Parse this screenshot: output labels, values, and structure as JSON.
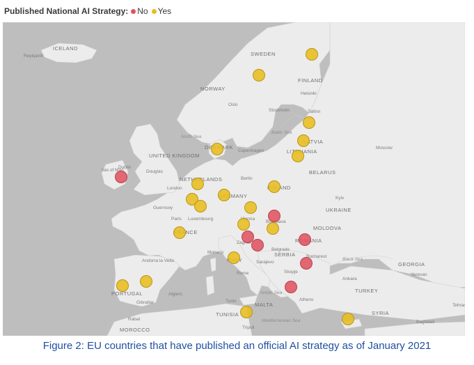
{
  "legend": {
    "title": "Published National AI Strategy:",
    "items": [
      {
        "label": "No",
        "color": "#e05462"
      },
      {
        "label": "Yes",
        "color": "#e8bd1f"
      }
    ]
  },
  "map": {
    "water_color": "#bebebe",
    "land_color": "#ececec",
    "labels": [
      {
        "key": "iceland",
        "text": "ICELAND",
        "kind": "country"
      },
      {
        "key": "reykjavik",
        "text": "Reykjavík",
        "kind": "city"
      },
      {
        "key": "sweden",
        "text": "SWEDEN",
        "kind": "country"
      },
      {
        "key": "norway",
        "text": "NORWAY",
        "kind": "country"
      },
      {
        "key": "finland",
        "text": "FINLAND",
        "kind": "country"
      },
      {
        "key": "helsinki",
        "text": "Helsinki",
        "kind": "city"
      },
      {
        "key": "tallinn",
        "text": "Tallinn",
        "kind": "city"
      },
      {
        "key": "oslo",
        "text": "Oslo",
        "kind": "city"
      },
      {
        "key": "stockholm",
        "text": "Stockholm",
        "kind": "city"
      },
      {
        "key": "north_sea",
        "text": "North Sea",
        "kind": "water"
      },
      {
        "key": "baltic_sea",
        "text": "Baltic Sea",
        "kind": "water"
      },
      {
        "key": "copenhagen",
        "text": "Copenhagen",
        "kind": "city"
      },
      {
        "key": "denmark",
        "text": "DENMARK",
        "kind": "country"
      },
      {
        "key": "latvia",
        "text": "LATVIA",
        "kind": "country"
      },
      {
        "key": "lithuania",
        "text": "LITHUANIA",
        "kind": "country"
      },
      {
        "key": "moscow",
        "text": "Moscow",
        "kind": "city"
      },
      {
        "key": "belarus",
        "text": "BELARUS",
        "kind": "country"
      },
      {
        "key": "united_kingdom",
        "text": "UNITED KINGDOM",
        "kind": "country"
      },
      {
        "key": "isle_of_man",
        "text": "Isle of Man",
        "kind": "city"
      },
      {
        "key": "dublin",
        "text": "Dublin",
        "kind": "city"
      },
      {
        "key": "douglas",
        "text": "Douglas",
        "kind": "city"
      },
      {
        "key": "netherlands",
        "text": "NETHERLANDS",
        "kind": "country"
      },
      {
        "key": "london",
        "text": "London",
        "kind": "city"
      },
      {
        "key": "berlin",
        "text": "Berlin",
        "kind": "city"
      },
      {
        "key": "poland",
        "text": "POLAND",
        "kind": "country"
      },
      {
        "key": "germany",
        "text": "GERMANY",
        "kind": "country"
      },
      {
        "key": "kyiv",
        "text": "Kyiv",
        "kind": "city"
      },
      {
        "key": "ukraine",
        "text": "UKRAINE",
        "kind": "country"
      },
      {
        "key": "paris",
        "text": "Paris",
        "kind": "city"
      },
      {
        "key": "luxembourg",
        "text": "Luxembourg",
        "kind": "city"
      },
      {
        "key": "guernsey",
        "text": "Guernsey",
        "kind": "city"
      },
      {
        "key": "france",
        "text": "FRANCE",
        "kind": "country"
      },
      {
        "key": "vienna",
        "text": "Vienna",
        "kind": "city"
      },
      {
        "key": "bratislava",
        "text": "Bratislava",
        "kind": "city"
      },
      {
        "key": "moldova",
        "text": "MOLDOVA",
        "kind": "country"
      },
      {
        "key": "romania",
        "text": "ROMANIA",
        "kind": "country"
      },
      {
        "key": "zagreb",
        "text": "Zagreb",
        "kind": "city"
      },
      {
        "key": "belgrade",
        "text": "Belgrade",
        "kind": "city"
      },
      {
        "key": "serbia",
        "text": "SERBIA",
        "kind": "country"
      },
      {
        "key": "bucharest",
        "text": "Bucharest",
        "kind": "city"
      },
      {
        "key": "black_sea",
        "text": "Black Sea",
        "kind": "water"
      },
      {
        "key": "monaco",
        "text": "Monaco",
        "kind": "city"
      },
      {
        "key": "sarajevo",
        "text": "Sarajevo",
        "kind": "city"
      },
      {
        "key": "andorra",
        "text": "Andorra la Vella",
        "kind": "city"
      },
      {
        "key": "italy",
        "text": "ITALY",
        "kind": "country"
      },
      {
        "key": "rome",
        "text": "Rome",
        "kind": "city"
      },
      {
        "key": "skopje",
        "text": "Skopje",
        "kind": "city"
      },
      {
        "key": "georgia",
        "text": "GEORGIA",
        "kind": "country"
      },
      {
        "key": "yerevan",
        "text": "Yerevan",
        "kind": "city"
      },
      {
        "key": "ankara",
        "text": "Ankara",
        "kind": "city"
      },
      {
        "key": "turkey",
        "text": "TURKEY",
        "kind": "country"
      },
      {
        "key": "portugal",
        "text": "PORTUGAL",
        "kind": "country"
      },
      {
        "key": "gibraltar",
        "text": "Gibraltar",
        "kind": "city"
      },
      {
        "key": "algiers",
        "text": "Algiers",
        "kind": "city"
      },
      {
        "key": "tunis",
        "text": "Tunis",
        "kind": "city"
      },
      {
        "key": "ionian_sea",
        "text": "Ionian Sea",
        "kind": "water"
      },
      {
        "key": "athens",
        "text": "Athens",
        "kind": "city"
      },
      {
        "key": "tunisia",
        "text": "TUNISIA",
        "kind": "country"
      },
      {
        "key": "malta",
        "text": "MALTA",
        "kind": "country"
      },
      {
        "key": "mediterranean",
        "text": "Mediterranean Sea",
        "kind": "water"
      },
      {
        "key": "syria",
        "text": "SYRIA",
        "kind": "country"
      },
      {
        "key": "baghdad",
        "text": "Baghdad",
        "kind": "city"
      },
      {
        "key": "tehran",
        "text": "Tehran",
        "kind": "city"
      },
      {
        "key": "rabat",
        "text": "Rabat",
        "kind": "city"
      },
      {
        "key": "tripoli",
        "text": "Tripoli",
        "kind": "city"
      },
      {
        "key": "morocco",
        "text": "MOROCCO",
        "kind": "country"
      }
    ],
    "markers": [
      {
        "key": "finland",
        "status": "Yes"
      },
      {
        "key": "sweden",
        "status": "Yes"
      },
      {
        "key": "estonia",
        "status": "Yes"
      },
      {
        "key": "latvia",
        "status": "Yes"
      },
      {
        "key": "lithuania",
        "status": "Yes"
      },
      {
        "key": "denmark",
        "status": "Yes"
      },
      {
        "key": "ireland",
        "status": "No"
      },
      {
        "key": "netherlands",
        "status": "Yes"
      },
      {
        "key": "belgium",
        "status": "Yes"
      },
      {
        "key": "luxembourg",
        "status": "Yes"
      },
      {
        "key": "germany",
        "status": "Yes"
      },
      {
        "key": "poland",
        "status": "Yes"
      },
      {
        "key": "czechia",
        "status": "Yes"
      },
      {
        "key": "slovakia",
        "status": "No"
      },
      {
        "key": "austria",
        "status": "Yes"
      },
      {
        "key": "hungary",
        "status": "Yes"
      },
      {
        "key": "france",
        "status": "Yes"
      },
      {
        "key": "slovenia",
        "status": "No"
      },
      {
        "key": "croatia",
        "status": "No"
      },
      {
        "key": "romania",
        "status": "No"
      },
      {
        "key": "bulgaria",
        "status": "No"
      },
      {
        "key": "italy",
        "status": "Yes"
      },
      {
        "key": "spain",
        "status": "Yes"
      },
      {
        "key": "portugal",
        "status": "Yes"
      },
      {
        "key": "greece",
        "status": "No"
      },
      {
        "key": "malta",
        "status": "Yes"
      },
      {
        "key": "cyprus",
        "status": "Yes"
      }
    ]
  },
  "caption": "Figure 2: EU countries that have published an official AI strategy as of January 2021"
}
